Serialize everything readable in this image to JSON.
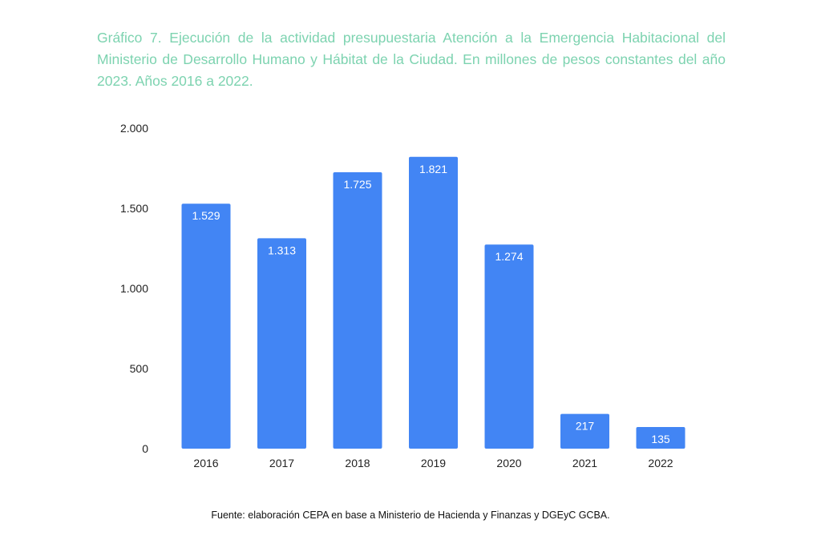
{
  "colors": {
    "title": "#7dd3b0",
    "bar": "#4285f4",
    "bar_label": "#ffffff",
    "axis_text": "#222222"
  },
  "header": {
    "title": "Gráfico 7. Ejecución de la actividad presupuestaria Atención a la Emergencia Habitacional del Ministerio de Desarrollo Humano y Hábitat de la Ciudad. En millones de pesos constantes del año 2023. Años 2016 a 2022."
  },
  "footer": {
    "source": "Fuente: elaboración CEPA en base a Ministerio de Hacienda y Finanzas y DGEyC GCBA."
  },
  "chart_data": {
    "type": "bar",
    "title": "Gráfico 7. Ejecución de la actividad presupuestaria Atención a la Emergencia Habitacional del Ministerio de Desarrollo Humano y Hábitat de la Ciudad. En millones de pesos constantes del año 2023. Años 2016 a 2022.",
    "xlabel": "",
    "ylabel": "",
    "categories": [
      "2016",
      "2017",
      "2018",
      "2019",
      "2020",
      "2021",
      "2022"
    ],
    "values": [
      1529,
      1313,
      1725,
      1821,
      1274,
      217,
      135
    ],
    "data_labels": [
      "1.529",
      "1.313",
      "1.725",
      "1.821",
      "1.274",
      "217",
      "135"
    ],
    "ylim": [
      0,
      2000
    ],
    "yticks": [
      0,
      500,
      1000,
      1500,
      2000
    ],
    "ytick_labels": [
      "0",
      "500",
      "1.000",
      "1.500",
      "2.000"
    ],
    "grid": false,
    "legend": "none"
  }
}
